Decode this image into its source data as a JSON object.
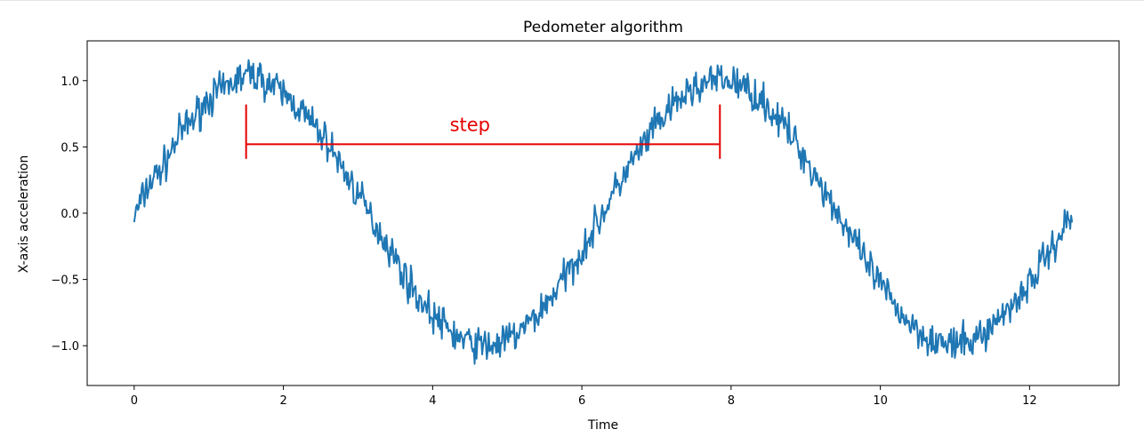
{
  "chart_data": {
    "type": "line",
    "title": "Pedometer algorithm",
    "xlabel": "Time",
    "ylabel": "X-axis acceleration",
    "xlim": [
      -0.63,
      13.2
    ],
    "ylim": [
      -1.3,
      1.3
    ],
    "xticks": [
      0,
      2,
      4,
      6,
      8,
      10,
      12
    ],
    "yticks": [
      -1.0,
      -0.5,
      0.0,
      0.5,
      1.0
    ],
    "xtick_labels": [
      "0",
      "2",
      "4",
      "6",
      "8",
      "10",
      "12"
    ],
    "ytick_labels": [
      "−1.0",
      "−0.5",
      "0.0",
      "0.5",
      "1.0"
    ],
    "grid": false,
    "series": [
      {
        "color": "#1f77b4",
        "description": "noisy sine wave sin(t) sampled from t = 0 to 12.57",
        "x": [
          0.0,
          0.2,
          0.4,
          0.6,
          0.8,
          1.0,
          1.2,
          1.4,
          1.6,
          1.8,
          2.0,
          2.2,
          2.4,
          2.6,
          2.8,
          3.0,
          3.2,
          3.4,
          3.6,
          3.8,
          4.0,
          4.2,
          4.4,
          4.6,
          4.8,
          5.0,
          5.2,
          5.4,
          5.6,
          5.8,
          6.0,
          6.2,
          6.4,
          6.6,
          6.8,
          7.0,
          7.2,
          7.4,
          7.6,
          7.8,
          8.0,
          8.2,
          8.4,
          8.6,
          8.8,
          9.0,
          9.2,
          9.4,
          9.6,
          9.8,
          10.0,
          10.2,
          10.4,
          10.6,
          10.8,
          11.0,
          11.2,
          11.4,
          11.6,
          11.8,
          12.0,
          12.2,
          12.4,
          12.57
        ],
        "y": [
          -0.03,
          0.22,
          0.36,
          0.59,
          0.72,
          0.87,
          0.93,
          1.02,
          1.05,
          0.98,
          0.9,
          0.8,
          0.66,
          0.53,
          0.33,
          0.14,
          -0.06,
          -0.24,
          -0.45,
          -0.63,
          -0.77,
          -0.87,
          -0.96,
          -0.99,
          -1.0,
          -0.96,
          -0.88,
          -0.77,
          -0.62,
          -0.46,
          -0.28,
          -0.08,
          0.12,
          0.32,
          0.49,
          0.66,
          0.79,
          0.9,
          0.97,
          1.0,
          1.0,
          0.94,
          0.86,
          0.73,
          0.59,
          0.41,
          0.22,
          0.03,
          -0.17,
          -0.37,
          -0.54,
          -0.7,
          -0.83,
          -0.92,
          -0.98,
          -1.0,
          -0.97,
          -0.9,
          -0.79,
          -0.66,
          -0.53,
          -0.34,
          -0.17,
          0.0
        ]
      }
    ],
    "annotations": [
      {
        "text": "step",
        "color": "#e60000",
        "bracket_x": [
          1.5,
          7.85
        ],
        "bracket_y": 0.52,
        "cap_y": [
          0.41,
          0.82
        ],
        "text_x": 4.5,
        "text_y": 0.62
      }
    ]
  }
}
